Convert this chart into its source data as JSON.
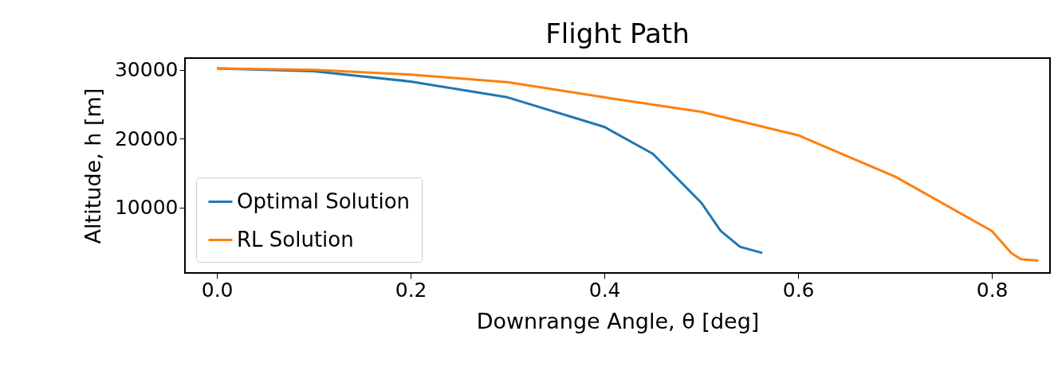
{
  "chart_data": {
    "type": "line",
    "title": "Flight Path",
    "xlabel": "Downrange Angle, θ [deg]",
    "ylabel": "Altitude, h [m]",
    "xlim": [
      -0.033,
      0.86
    ],
    "xticks": [
      {
        "value": 0,
        "label": "0.0"
      },
      0.2,
      0.4,
      0.6,
      0.8
    ],
    "ylim": [
      500,
      31700
    ],
    "yticks": [
      10000,
      20000,
      30000
    ],
    "grid": false,
    "legend": "lower left",
    "line_style": "solid",
    "marker": "none",
    "series": [
      {
        "name": "Optimal Solution",
        "color": "#1f77b4",
        "x": [
          0,
          0.1,
          0.2,
          0.3,
          0.4,
          0.45,
          0.5,
          0.52,
          0.54,
          0.563
        ],
        "values": [
          30200,
          29800,
          28300,
          26000,
          21700,
          17800,
          10700,
          6600,
          4300,
          3400
        ]
      },
      {
        "name": "RL Solution",
        "color": "#ff7f0e",
        "x": [
          0,
          0.1,
          0.2,
          0.3,
          0.4,
          0.5,
          0.6,
          0.7,
          0.8,
          0.82,
          0.83,
          0.848
        ],
        "values": [
          30200,
          30000,
          29300,
          28200,
          26000,
          23900,
          20500,
          14500,
          6600,
          3400,
          2500,
          2300
        ]
      }
    ]
  }
}
